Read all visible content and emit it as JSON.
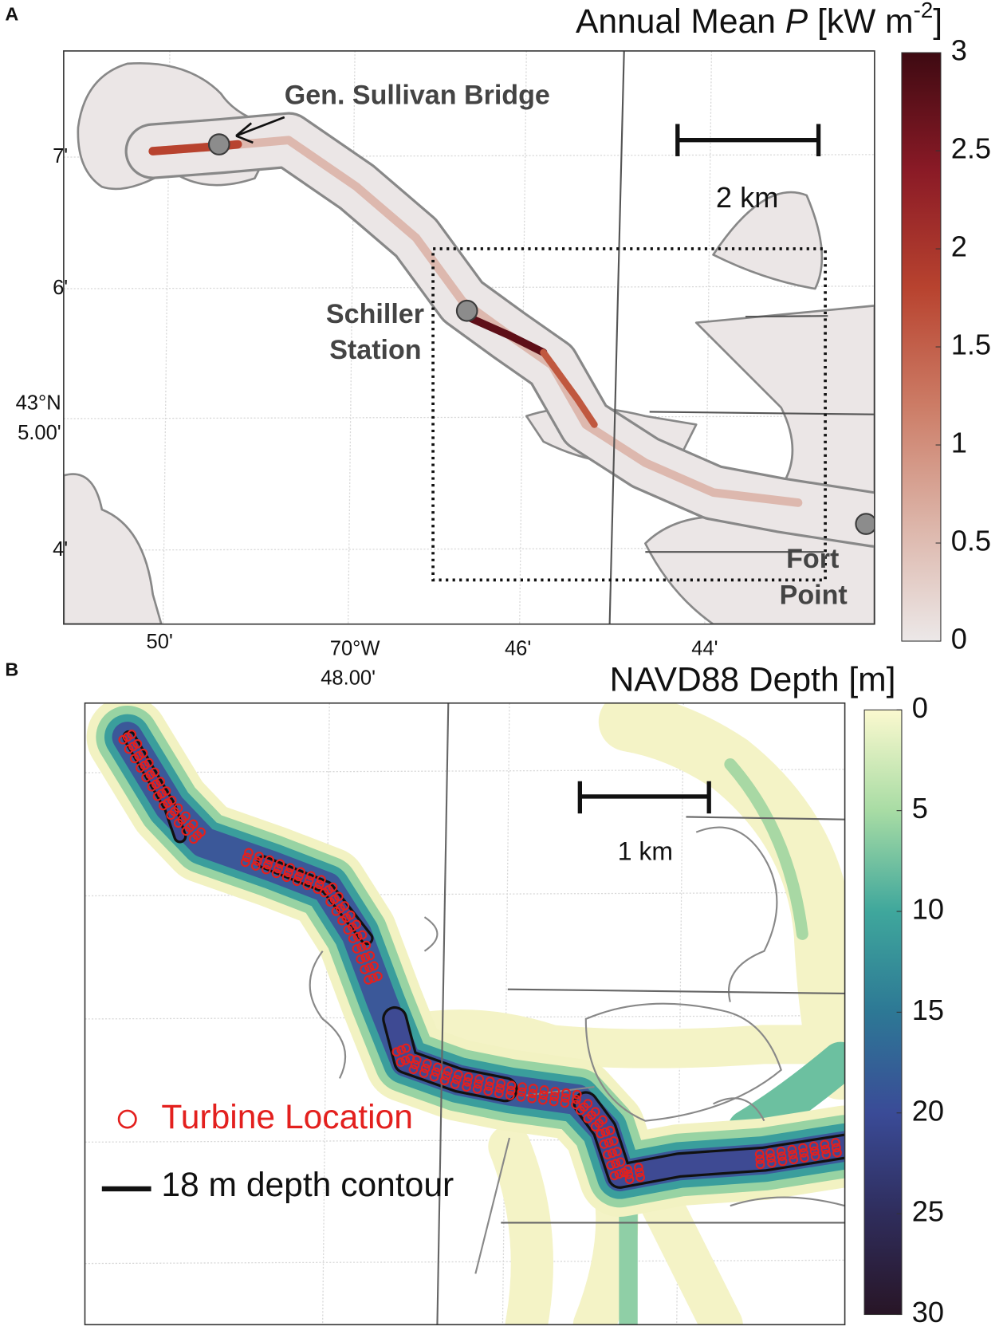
{
  "panel_a": {
    "label": "A",
    "title": [
      "Annual Mean ",
      "P",
      " [kW m",
      "-2",
      "]"
    ],
    "colorbar": {
      "lim": [
        0,
        3
      ],
      "ticks": [
        0,
        0.5,
        1,
        1.5,
        2,
        2.5,
        3
      ],
      "reversed": false,
      "colors": [
        "#ece8e8",
        "#dcb4a8",
        "#cc7c66",
        "#b8432f",
        "#8a1a26",
        "#3e0a12"
      ]
    },
    "lat_labels": [
      "7'",
      "6'",
      "43°N",
      "5.00'",
      "4'"
    ],
    "lon_labels": [
      "50'",
      "70°W",
      "48.00'",
      "46'",
      "44'"
    ],
    "places": [
      "Gen. Sullivan Bridge",
      "Schiller",
      "Station",
      "Fort",
      "Point"
    ],
    "scale_bar": "2 km"
  },
  "panel_b": {
    "label": "B",
    "title": "NAVD88 Depth [m]",
    "colorbar": {
      "lim": [
        0,
        30
      ],
      "ticks": [
        0,
        5,
        10,
        15,
        20,
        25,
        30
      ],
      "reversed": true,
      "colors": [
        "#fbf9cf",
        "#a8dca4",
        "#3fa79c",
        "#2d7895",
        "#3a4b97",
        "#2f2d5c",
        "#281526"
      ]
    },
    "scale_bar": "1 km",
    "legend": [
      "Turbine Location",
      "18 m depth contour"
    ]
  }
}
